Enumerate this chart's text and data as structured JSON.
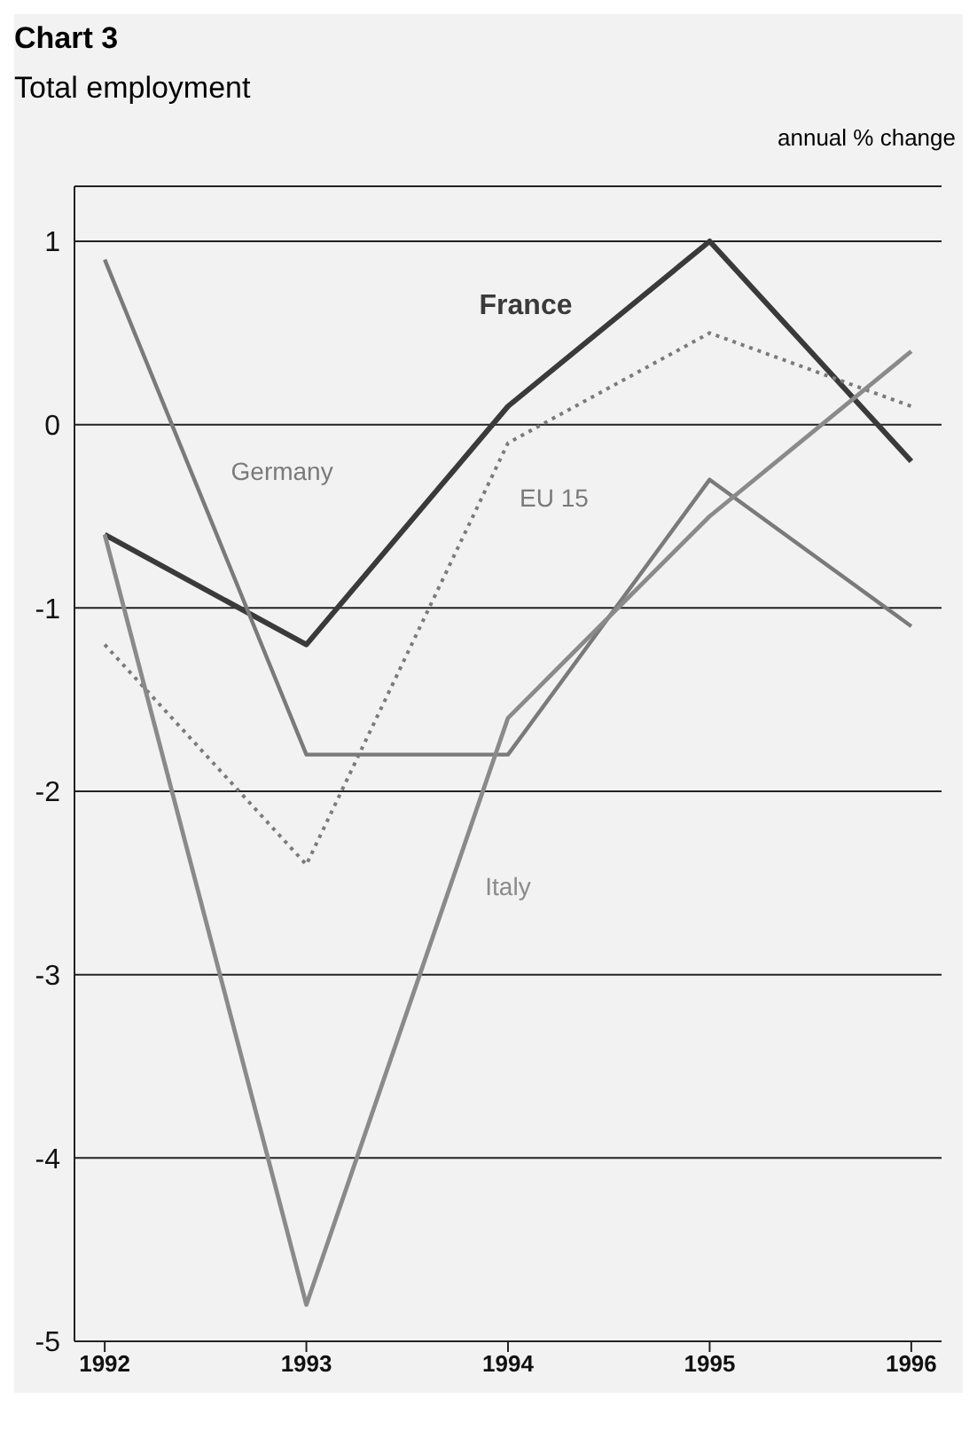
{
  "chart_data": {
    "type": "line",
    "title": "Chart 3",
    "subtitle": "Total employment",
    "ylabel": "annual % change",
    "x": [
      1992,
      1993,
      1994,
      1995,
      1996
    ],
    "series": [
      {
        "name": "France",
        "color": "#3a3a3a",
        "values": [
          -0.6,
          -1.2,
          0.1,
          1.0,
          -0.2
        ]
      },
      {
        "name": "Germany",
        "color": "#7a7a7a",
        "values": [
          0.9,
          -1.8,
          -1.8,
          -0.3,
          -1.1
        ]
      },
      {
        "name": "EU 15",
        "color": "#7a7a7a",
        "line_style": "dotted",
        "values": [
          -1.2,
          -2.4,
          -0.1,
          0.5,
          0.1
        ]
      },
      {
        "name": "Italy",
        "color": "#8a8a8a",
        "values": [
          -0.6,
          -4.8,
          -1.6,
          -0.5,
          0.4
        ]
      }
    ],
    "xlim": [
      1991.85,
      1996.15
    ],
    "xticks": [
      1992,
      1993,
      1994,
      1995,
      1996
    ],
    "ylim": [
      -5,
      1.3
    ],
    "yticks": [
      -5,
      -4,
      -3,
      -2,
      -1,
      0,
      1
    ],
    "grid": "y",
    "marker": "none",
    "line_style": "solid"
  }
}
